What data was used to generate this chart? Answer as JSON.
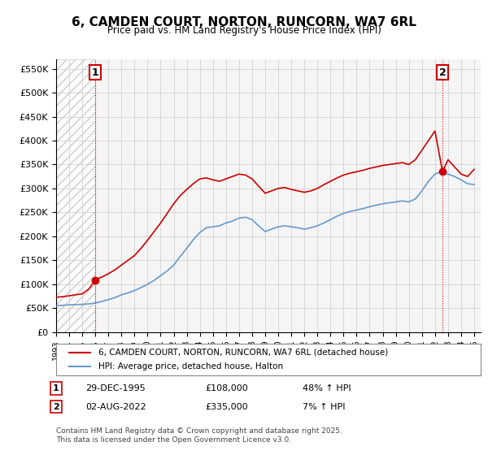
{
  "title": "6, CAMDEN COURT, NORTON, RUNCORN, WA7 6RL",
  "subtitle": "Price paid vs. HM Land Registry's House Price Index (HPI)",
  "ylim": [
    0,
    570000
  ],
  "yticks": [
    0,
    50000,
    100000,
    150000,
    200000,
    250000,
    300000,
    350000,
    400000,
    450000,
    500000,
    550000
  ],
  "ytick_labels": [
    "£0",
    "£50K",
    "£100K",
    "£150K",
    "£200K",
    "£250K",
    "£300K",
    "£350K",
    "£400K",
    "£450K",
    "£500K",
    "£550K"
  ],
  "legend_line1": "6, CAMDEN COURT, NORTON, RUNCORN, WA7 6RL (detached house)",
  "legend_line2": "HPI: Average price, detached house, Halton",
  "annotation1": {
    "num": "1",
    "date": "29-DEC-1995",
    "price": "£108,000",
    "hpi": "48% ↑ HPI"
  },
  "annotation2": {
    "num": "2",
    "date": "02-AUG-2022",
    "price": "£335,000",
    "hpi": "7% ↑ HPI"
  },
  "footnote": "Contains HM Land Registry data © Crown copyright and database right 2025.\nThis data is licensed under the Open Government Licence v3.0.",
  "line_color_red": "#cc0000",
  "line_color_blue": "#6699cc",
  "grid_color": "#cccccc",
  "hatch_color": "#dddddd",
  "point1_x": 1995.99,
  "point1_y": 108000,
  "point2_x": 2022.58,
  "point2_y": 335000,
  "vline1_x": 1995.99,
  "vline2_x": 2022.58,
  "xmin": 1993.0,
  "xmax": 2025.5,
  "background_color": "#ffffff",
  "plot_bg_color": "#f5f5f5"
}
